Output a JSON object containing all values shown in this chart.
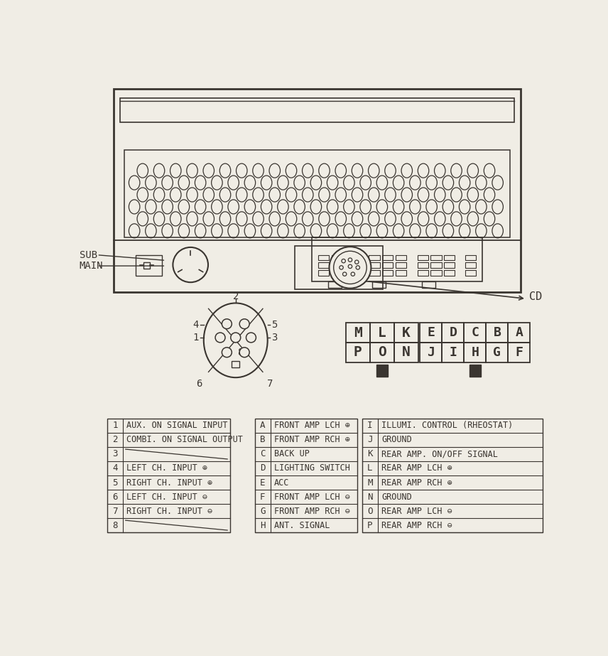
{
  "bg_color": "#f0ede5",
  "line_color": "#3a3530",
  "text_color": "#3a3530",
  "table1_rows": [
    [
      "1",
      "AUX. ON SIGNAL INPUT"
    ],
    [
      "2",
      "COMBI. ON SIGNAL OUTPUT"
    ],
    [
      "3",
      ""
    ],
    [
      "4",
      "LEFT CH. INPUT ⊕"
    ],
    [
      "5",
      "RIGHT CH. INPUT ⊕"
    ],
    [
      "6",
      "LEFT CH. INPUT ⊖"
    ],
    [
      "7",
      "RIGHT CH. INPUT ⊖"
    ],
    [
      "8",
      ""
    ]
  ],
  "table2_rows": [
    [
      "A",
      "FRONT AMP LCH ⊕"
    ],
    [
      "B",
      "FRONT AMP RCH ⊕"
    ],
    [
      "C",
      "BACK UP"
    ],
    [
      "D",
      "LIGHTING SWITCH"
    ],
    [
      "E",
      "ACC"
    ],
    [
      "F",
      "FRONT AMP LCH ⊖"
    ],
    [
      "G",
      "FRONT AMP RCH ⊖"
    ],
    [
      "H",
      "ANT. SIGNAL"
    ]
  ],
  "table3_rows": [
    [
      "I",
      "ILLUMI. CONTROL (RHEOSTAT)"
    ],
    [
      "J",
      "GROUND"
    ],
    [
      "K",
      "REAR AMP. ON/OFF SIGNAL"
    ],
    [
      "L",
      "REAR AMP LCH ⊕"
    ],
    [
      "M",
      "REAR AMP RCH ⊕"
    ],
    [
      "N",
      "GROUND"
    ],
    [
      "O",
      "REAR AMP LCH ⊖"
    ],
    [
      "P",
      "REAR AMP RCH ⊖"
    ]
  ],
  "connector_PON_top": [
    [
      "P",
      "O",
      "N"
    ]
  ],
  "connector_PON_bot": [
    [
      "M",
      "L",
      "K"
    ]
  ],
  "connector_JIHGF_top": [
    [
      "J",
      "I",
      "H",
      "G",
      "F"
    ]
  ],
  "connector_JIHGF_bot": [
    [
      "E",
      "D",
      "C",
      "B",
      "A"
    ]
  ]
}
